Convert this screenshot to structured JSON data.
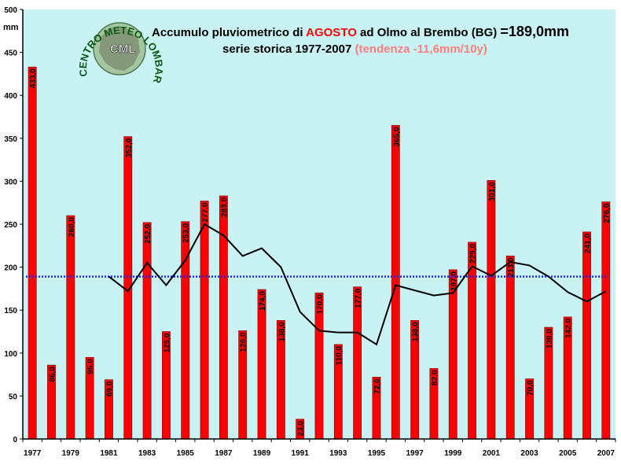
{
  "colors": {
    "background": "#c8f2f4",
    "bar": "#ff0000",
    "average_line": "#1a22ff",
    "trend_line": "#000000",
    "accent_month": "#ff0000",
    "tendency_text": "#ff7f7f"
  },
  "unit_label": "mm",
  "title": {
    "line1_prefix": "Accumulo pluviometrico di ",
    "line1_month": "AGOSTO",
    "line1_mid": " ad Olmo al Brembo (BG) ",
    "line1_total": "=189,0mm",
    "line2_main": "serie storica 1977-2007 ",
    "line2_trend": "(tendenza -11,6mm/10y)"
  },
  "logo": {
    "initials": "CML",
    "ring_text": "CENTRO METEO LOMBARDO"
  },
  "chart_data": {
    "type": "bar",
    "title": "Accumulo pluviometrico di AGOSTO ad Olmo al Brembo (BG) =189,0mm",
    "subtitle": "serie storica 1977-2007 (tendenza -11,6mm/10y)",
    "ylabel": "mm",
    "ylim": [
      0,
      500
    ],
    "yticks": [
      0,
      50,
      100,
      150,
      200,
      250,
      300,
      350,
      400,
      450,
      500
    ],
    "grid": false,
    "categories": [
      "1977",
      "1978",
      "1979",
      "1980",
      "1981",
      "1982",
      "1983",
      "1984",
      "1985",
      "1986",
      "1987",
      "1988",
      "1989",
      "1990",
      "1991",
      "1992",
      "1993",
      "1994",
      "1995",
      "1996",
      "1997",
      "1998",
      "1999",
      "2000",
      "2001",
      "2002",
      "2003",
      "2004",
      "2005",
      "2006",
      "2007"
    ],
    "xtick_labels": [
      "1977",
      "",
      "1979",
      "",
      "1981",
      "",
      "1983",
      "",
      "1985",
      "",
      "1987",
      "",
      "1989",
      "",
      "1991",
      "",
      "1993",
      "",
      "1995",
      "",
      "1997",
      "",
      "1999",
      "",
      "2001",
      "",
      "2003",
      "",
      "2005",
      "",
      "2007"
    ],
    "series": [
      {
        "type": "bar",
        "values": [
          433.0,
          86.0,
          260.0,
          95.0,
          69.0,
          352.0,
          252.0,
          125.0,
          253.0,
          277.0,
          283.0,
          126.0,
          174.0,
          138.0,
          23.0,
          170.0,
          110.0,
          177.0,
          72.0,
          365.0,
          138.0,
          82.0,
          197.0,
          229.0,
          301.0,
          213.0,
          70.0,
          130.0,
          142.0,
          241.0,
          276.0
        ],
        "labels": [
          "433,0",
          "86,0",
          "260,0",
          "95,0",
          "69,0",
          "352,0",
          "252,0",
          "125,0",
          "253,0",
          "277,0",
          "283,0",
          "126,0",
          "174,0",
          "138,0",
          "23,0",
          "170,0",
          "110,0",
          "177,0",
          "72,0",
          "365,0",
          "138,0",
          "82,0",
          "197,0",
          "229,0",
          "301,0",
          "213,0",
          "70,0",
          "130,0",
          "142,0",
          "241,0",
          "276,0"
        ]
      },
      {
        "type": "line",
        "style": "dotted",
        "values": [
          189.0,
          189.0,
          189.0,
          189.0,
          189.0,
          189.0,
          189.0,
          189.0,
          189.0,
          189.0,
          189.0,
          189.0,
          189.0,
          189.0,
          189.0,
          189.0,
          189.0,
          189.0,
          189.0,
          189.0,
          189.0,
          189.0,
          189.0,
          189.0,
          189.0,
          189.0,
          189.0,
          189.0,
          189.0,
          189.0,
          189.0
        ]
      },
      {
        "type": "line",
        "x": [
          "1981",
          "1982",
          "1983",
          "1984",
          "1985",
          "1986",
          "1987",
          "1988",
          "1989",
          "1990",
          "1991",
          "1992",
          "1993",
          "1994",
          "1995",
          "1996",
          "1997",
          "1998",
          "1999",
          "2000",
          "2001",
          "2002",
          "2003",
          "2004",
          "2005",
          "2006",
          "2007"
        ],
        "values": [
          189,
          172,
          205,
          179,
          208,
          250,
          237,
          213,
          222,
          200,
          148,
          126,
          124,
          124,
          110,
          179,
          173,
          167,
          170,
          201,
          190,
          206,
          202,
          189,
          171,
          160,
          172
        ]
      }
    ]
  }
}
